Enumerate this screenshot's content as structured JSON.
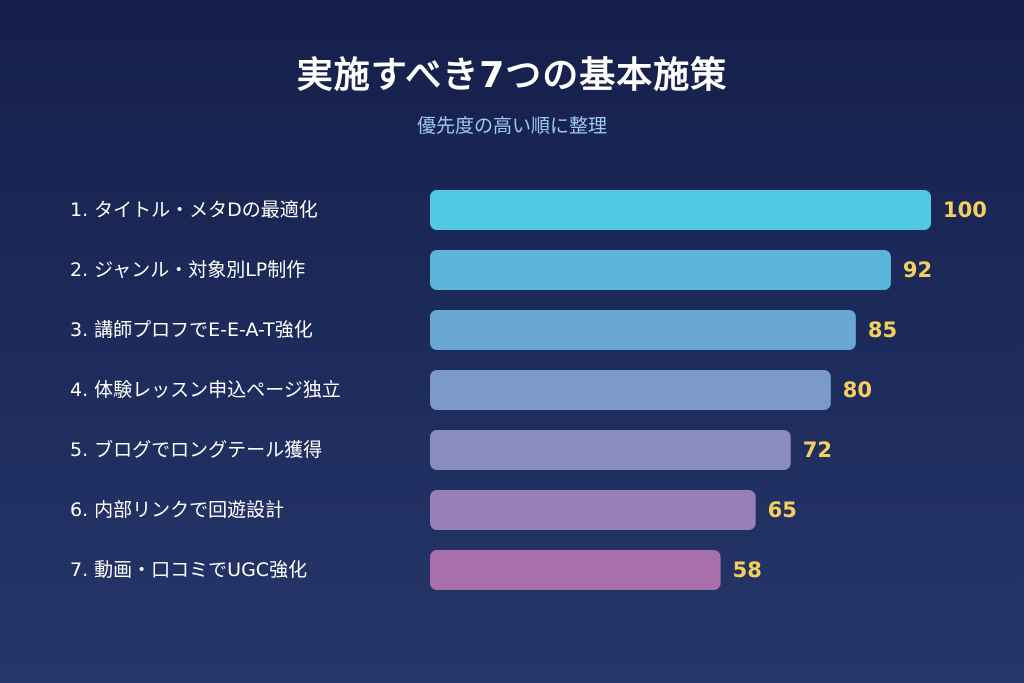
{
  "header": {
    "title": "実施すべき7つの基本施策",
    "subtitle": "優先度の高い順に整理"
  },
  "chart_data": {
    "type": "bar",
    "orientation": "horizontal",
    "title": "実施すべき7つの基本施策",
    "subtitle": "優先度の高い順に整理",
    "categories": [
      "1. タイトル・メタDの最適化",
      "2. ジャンル・対象別LP制作",
      "3. 講師プロフでE-E-A-T強化",
      "4. 体験レッスン申込ページ独立",
      "5. ブログでロングテール獲得",
      "6. 内部リンクで回遊設計",
      "7. 動画・口コミでUGC強化"
    ],
    "values": [
      100,
      92,
      85,
      80,
      72,
      65,
      58
    ],
    "xlim": [
      0,
      100
    ],
    "grid": false,
    "legend": "none",
    "colors": [
      "#4fc9e6",
      "#5bb5dc",
      "#6ba7d3",
      "#7b9acb",
      "#8a8cc0",
      "#9a7eb7",
      "#a86fad"
    ],
    "value_label_color": "#f5cf5e",
    "label_color": "#ffffff"
  }
}
